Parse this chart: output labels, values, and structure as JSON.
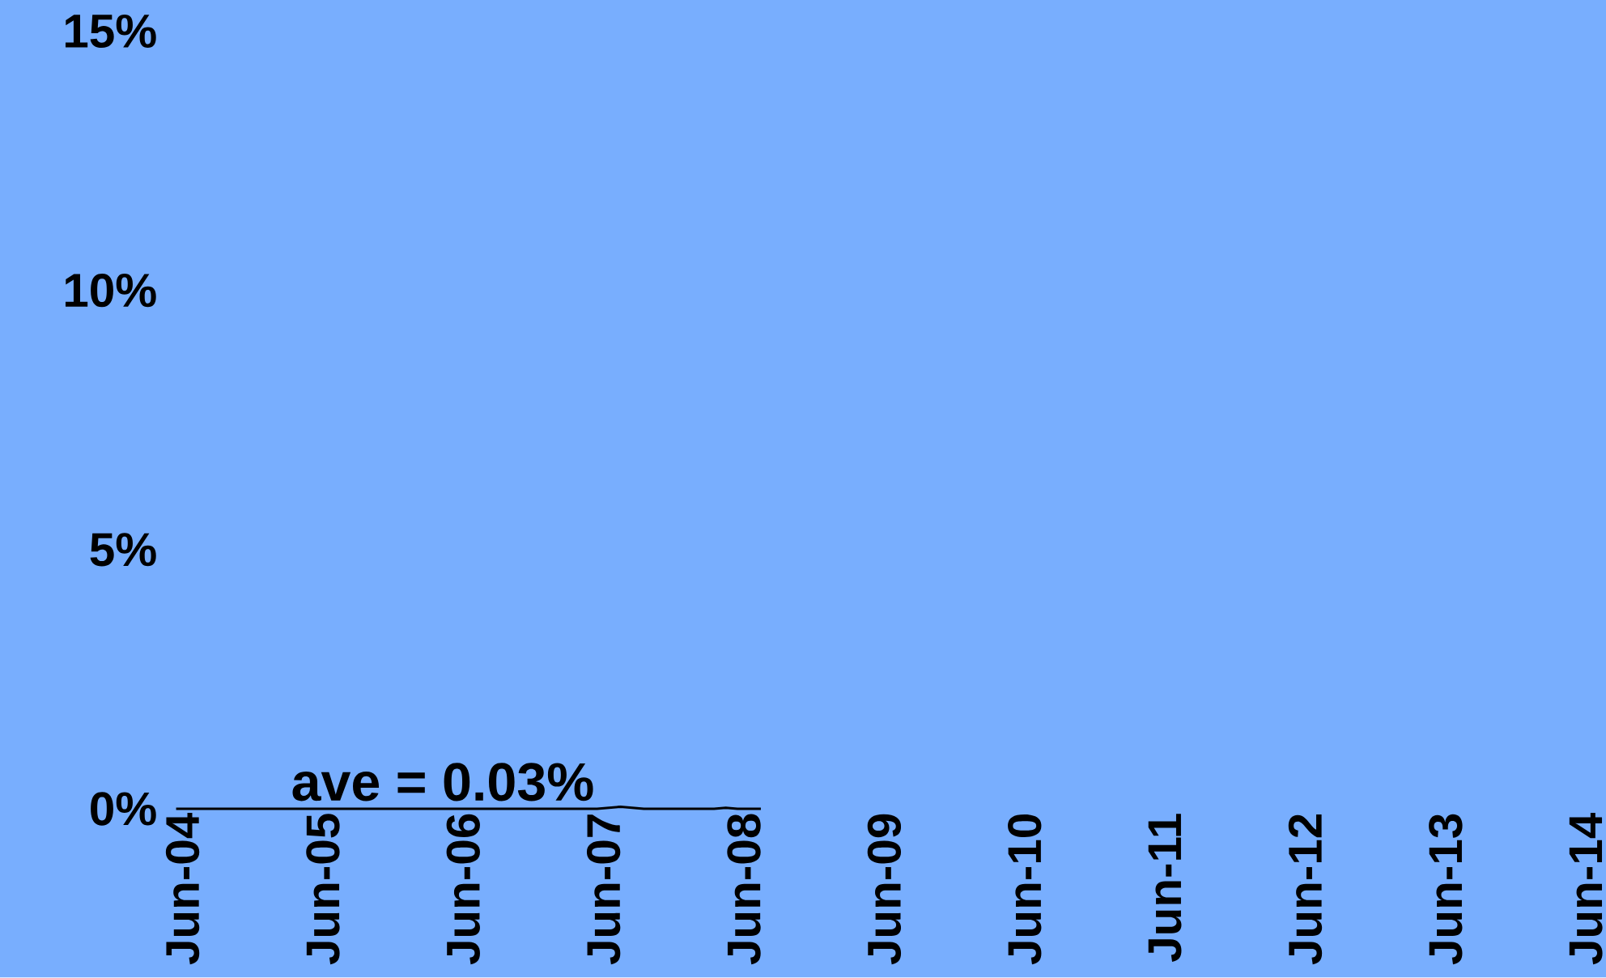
{
  "chart_data": {
    "type": "line",
    "x": [
      "2004-06",
      "2005-06",
      "2006-06",
      "2007-06",
      "2007-08",
      "2007-10",
      "2008-04",
      "2008-05",
      "2008-06",
      "2008-08"
    ],
    "series": [
      {
        "color": "#000000",
        "values": [
          0,
          0,
          0,
          0,
          0.04,
          0,
          0,
          0.02,
          0,
          0
        ]
      }
    ],
    "xlim": [
      "2004-06",
      "2014-06"
    ],
    "xticks": [
      {
        "value": "2004-06",
        "label": "Jun-04"
      },
      {
        "value": "2005-06",
        "label": "Jun-05"
      },
      {
        "value": "2006-06",
        "label": "Jun-06"
      },
      {
        "value": "2007-06",
        "label": "Jun-07"
      },
      {
        "value": "2008-06",
        "label": "Jun-08"
      },
      {
        "value": "2009-06",
        "label": "Jun-09"
      },
      {
        "value": "2010-06",
        "label": "Jun-10"
      },
      {
        "value": "2011-06",
        "label": "Jun-11"
      },
      {
        "value": "2012-06",
        "label": "Jun-12"
      },
      {
        "value": "2013-06",
        "label": "Jun-13"
      },
      {
        "value": "2014-06",
        "label": "Jun-14"
      }
    ],
    "ylim": [
      0,
      15
    ],
    "yticks": [
      {
        "value": 0,
        "label": "0%"
      },
      {
        "value": 5,
        "label": "5%"
      },
      {
        "value": 10,
        "label": "10%"
      },
      {
        "value": 15,
        "label": "15%"
      }
    ],
    "annotations": [
      "ave = 0.03%"
    ],
    "marker": "none",
    "line_style": "solid"
  }
}
